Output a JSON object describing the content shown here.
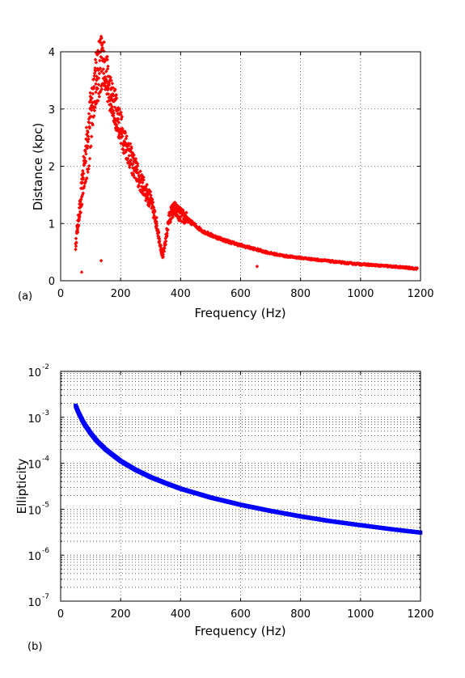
{
  "chart_data": [
    {
      "panel_label": "(a)",
      "type": "scatter",
      "xlabel": "Frequency (Hz)",
      "ylabel": "Distance (kpc)",
      "xlim": [
        0,
        1200
      ],
      "ylim": [
        0,
        4
      ],
      "xticks": [
        "0",
        "200",
        "400",
        "600",
        "800",
        "1000",
        "1200"
      ],
      "yticks": [
        "0",
        "1",
        "2",
        "3",
        "4"
      ],
      "grid": true,
      "marker": "red dots",
      "color": "#ff0000",
      "series": [
        {
          "x": [
            50,
            55,
            60,
            65,
            70,
            75,
            80,
            85,
            90,
            95,
            100,
            105,
            110,
            115,
            120,
            125,
            130,
            135,
            140,
            145,
            150,
            155,
            160,
            165,
            170,
            175,
            180,
            185,
            190,
            195,
            200,
            210,
            220,
            230,
            240,
            250,
            260,
            270,
            280,
            290,
            300,
            310,
            320,
            330,
            340,
            350,
            360,
            370,
            380,
            390,
            400,
            420,
            440,
            460,
            480,
            500,
            550,
            600,
            650,
            700,
            750,
            800,
            850,
            900,
            950,
            1000,
            1050,
            1100,
            1150,
            1190
          ],
          "y": [
            0.6,
            0.9,
            1.1,
            1.3,
            1.6,
            1.9,
            2.1,
            2.4,
            2.6,
            2.8,
            3.0,
            3.2,
            3.4,
            3.5,
            3.65,
            3.8,
            3.87,
            3.9,
            3.88,
            3.8,
            3.7,
            3.55,
            3.4,
            3.3,
            3.2,
            3.1,
            3.05,
            3.0,
            2.9,
            2.8,
            2.7,
            2.5,
            2.35,
            2.2,
            2.05,
            1.95,
            1.8,
            1.7,
            1.6,
            1.5,
            1.4,
            1.2,
            1.0,
            0.7,
            0.4,
            0.7,
            1.05,
            1.2,
            1.25,
            1.2,
            1.15,
            1.08,
            1.0,
            0.92,
            0.85,
            0.8,
            0.7,
            0.62,
            0.55,
            0.48,
            0.43,
            0.4,
            0.37,
            0.34,
            0.31,
            0.29,
            0.27,
            0.25,
            0.23,
            0.21
          ]
        },
        {
          "x": [
            55,
            65,
            75,
            85,
            95,
            105,
            115,
            125,
            135,
            145,
            155,
            165,
            175,
            185,
            195
          ],
          "y": [
            0.8,
            1.2,
            1.5,
            1.8,
            2.0,
            2.7,
            3.0,
            3.2,
            3.4,
            3.45,
            3.3,
            3.1,
            2.9,
            2.7,
            2.55
          ]
        },
        {
          "x": [
            70,
            135,
            655
          ],
          "y": [
            0.15,
            0.35,
            0.25
          ]
        }
      ]
    },
    {
      "panel_label": "(b)",
      "type": "scatter",
      "xlabel": "Frequency (Hz)",
      "ylabel": "Ellipticity",
      "xlim": [
        0,
        1200
      ],
      "ylim": [
        1e-07,
        0.01
      ],
      "yscale": "log",
      "xticks": [
        "0",
        "200",
        "400",
        "600",
        "800",
        "1000",
        "1200"
      ],
      "yticks": [
        {
          "base": "10",
          "exp": "-7"
        },
        {
          "base": "10",
          "exp": "-6"
        },
        {
          "base": "10",
          "exp": "-5"
        },
        {
          "base": "10",
          "exp": "-4"
        },
        {
          "base": "10",
          "exp": "-3"
        },
        {
          "base": "10",
          "exp": "-2"
        }
      ],
      "grid": true,
      "marker": "blue dots",
      "color": "#0000ff",
      "series": [
        {
          "x": [
            50,
            60,
            70,
            80,
            100,
            120,
            150,
            200,
            250,
            300,
            350,
            400,
            500,
            600,
            700,
            800,
            900,
            1000,
            1100,
            1200
          ],
          "y": [
            0.0018,
            0.00125,
            0.00092,
            0.0007,
            0.00045,
            0.00031,
            0.0002,
            0.000112,
            7.2e-05,
            5e-05,
            3.7e-05,
            2.8e-05,
            1.8e-05,
            1.25e-05,
            9.2e-06,
            7e-06,
            5.5e-06,
            4.5e-06,
            3.7e-06,
            3.1e-06
          ]
        }
      ]
    }
  ]
}
